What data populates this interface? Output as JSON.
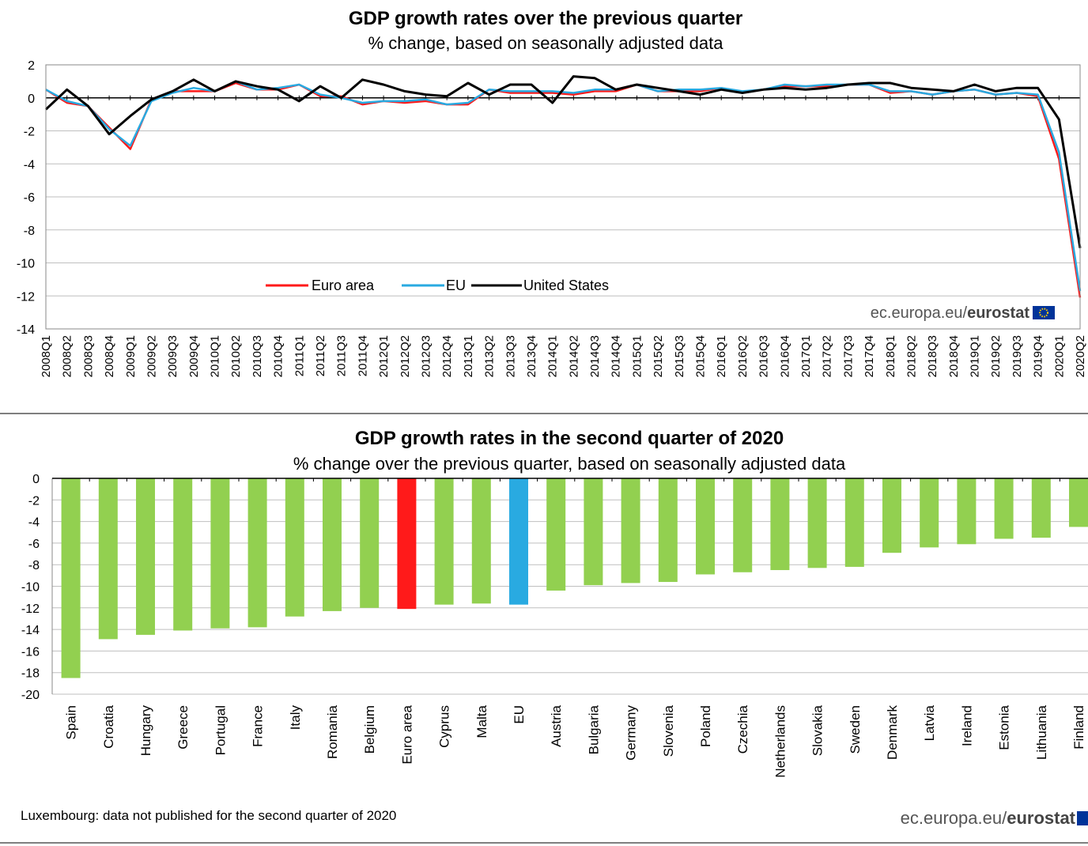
{
  "colors": {
    "euro_area": "#ff1a1a",
    "eu": "#29aae1",
    "us": "#000000",
    "country_bar": "#92d050",
    "euro_bar": "#ff1a1a",
    "eu_bar": "#29aae1",
    "grid": "#bfbfbf"
  },
  "footer": {
    "note": "Luxembourg: data not published for the second quarter of 2020",
    "source_prefix": "ec.europa.eu/",
    "source_brand": "eurostat",
    "flag_icon": "eu-flag-icon"
  },
  "chart_data": [
    {
      "type": "line",
      "title": "GDP growth rates over the previous quarter",
      "subtitle": "% change, based on seasonally adjusted data",
      "ylim": [
        -14,
        2
      ],
      "yticks": [
        2,
        0,
        -2,
        -4,
        -6,
        -8,
        -10,
        -12,
        -14
      ],
      "grid": true,
      "legend_position": "bottom-center",
      "x": [
        "2008Q1",
        "2008Q2",
        "2008Q3",
        "2008Q4",
        "2009Q1",
        "2009Q2",
        "2009Q3",
        "2009Q4",
        "2010Q1",
        "2010Q2",
        "2010Q3",
        "2010Q4",
        "2011Q1",
        "2011Q2",
        "2011Q3",
        "2011Q4",
        "2012Q1",
        "2012Q2",
        "2012Q3",
        "2012Q4",
        "2013Q1",
        "2013Q2",
        "2013Q3",
        "2013Q4",
        "2014Q1",
        "2014Q2",
        "2014Q3",
        "2014Q4",
        "2015Q1",
        "2015Q2",
        "2015Q3",
        "2015Q4",
        "2016Q1",
        "2016Q2",
        "2016Q3",
        "2016Q4",
        "2017Q1",
        "2017Q2",
        "2017Q3",
        "2017Q4",
        "2018Q1",
        "2018Q2",
        "2018Q3",
        "2018Q4",
        "2019Q1",
        "2019Q2",
        "2019Q3",
        "2019Q4",
        "2020Q1",
        "2020Q2"
      ],
      "series": [
        {
          "name": "Euro area",
          "color_key": "euro_area",
          "values": [
            0.5,
            -0.3,
            -0.5,
            -1.8,
            -3.1,
            -0.1,
            0.4,
            0.4,
            0.4,
            0.9,
            0.5,
            0.5,
            0.8,
            0.1,
            0.1,
            -0.4,
            -0.2,
            -0.3,
            -0.2,
            -0.4,
            -0.4,
            0.5,
            0.3,
            0.3,
            0.3,
            0.2,
            0.4,
            0.4,
            0.8,
            0.4,
            0.4,
            0.4,
            0.6,
            0.3,
            0.5,
            0.7,
            0.7,
            0.7,
            0.8,
            0.8,
            0.3,
            0.4,
            0.2,
            0.4,
            0.5,
            0.2,
            0.3,
            0.1,
            -3.7,
            -12.1
          ]
        },
        {
          "name": "EU",
          "color_key": "eu",
          "values": [
            0.5,
            -0.2,
            -0.5,
            -1.9,
            -2.9,
            -0.2,
            0.3,
            0.6,
            0.4,
            1.0,
            0.5,
            0.6,
            0.8,
            0.2,
            0.0,
            -0.3,
            -0.2,
            -0.2,
            -0.1,
            -0.4,
            -0.3,
            0.5,
            0.4,
            0.4,
            0.4,
            0.3,
            0.5,
            0.5,
            0.8,
            0.4,
            0.5,
            0.5,
            0.6,
            0.4,
            0.5,
            0.8,
            0.7,
            0.8,
            0.8,
            0.8,
            0.4,
            0.4,
            0.2,
            0.4,
            0.5,
            0.2,
            0.3,
            0.2,
            -3.3,
            -11.7
          ]
        },
        {
          "name": "United States",
          "color_key": "us",
          "values": [
            -0.7,
            0.5,
            -0.5,
            -2.2,
            -1.1,
            -0.1,
            0.4,
            1.1,
            0.4,
            1.0,
            0.7,
            0.5,
            -0.2,
            0.7,
            0.0,
            1.1,
            0.8,
            0.4,
            0.2,
            0.1,
            0.9,
            0.2,
            0.8,
            0.8,
            -0.3,
            1.3,
            1.2,
            0.5,
            0.8,
            0.6,
            0.4,
            0.2,
            0.5,
            0.3,
            0.5,
            0.6,
            0.5,
            0.6,
            0.8,
            0.9,
            0.9,
            0.6,
            0.5,
            0.4,
            0.8,
            0.4,
            0.6,
            0.6,
            -1.3,
            -9.1
          ]
        }
      ]
    },
    {
      "type": "bar",
      "title": "GDP growth rates in the second quarter of 2020",
      "subtitle": "% change over the previous  quarter, based on seasonally adjusted data",
      "ylim": [
        -20,
        0
      ],
      "yticks": [
        0,
        -2,
        -4,
        -6,
        -8,
        -10,
        -12,
        -14,
        -16,
        -18,
        -20
      ],
      "grid": true,
      "categories": [
        "Spain",
        "Croatia",
        "Hungary",
        "Greece",
        "Portugal",
        "France",
        "Italy",
        "Romania",
        "Belgium",
        "Euro area",
        "Cyprus",
        "Malta",
        "EU",
        "Austria",
        "Bulgaria",
        "Germany",
        "Slovenia",
        "Poland",
        "Czechia",
        "Netherlands",
        "Slovakia",
        "Sweden",
        "Denmark",
        "Latvia",
        "Ireland",
        "Estonia",
        "Lithuania",
        "Finland"
      ],
      "values": [
        -18.5,
        -14.9,
        -14.5,
        -14.1,
        -13.9,
        -13.8,
        -12.8,
        -12.3,
        -12.0,
        -12.1,
        -11.7,
        -11.6,
        -11.7,
        -10.4,
        -9.9,
        -9.7,
        -9.6,
        -8.9,
        -8.7,
        -8.5,
        -8.3,
        -8.2,
        -6.9,
        -6.4,
        -6.1,
        -5.6,
        -5.5,
        -4.5
      ],
      "highlight": {
        "Euro area": "euro_bar",
        "EU": "eu_bar"
      }
    }
  ]
}
